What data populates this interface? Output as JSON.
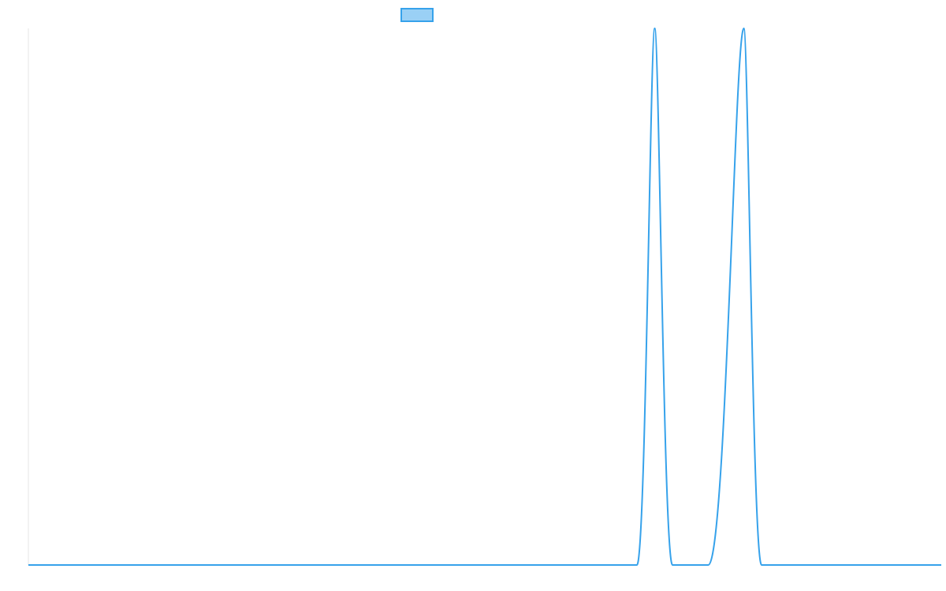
{
  "chart_data": {
    "type": "line",
    "title": "",
    "xlabel": "",
    "ylabel": "",
    "grid": false,
    "legend_placement": "top-center",
    "series": [
      {
        "label": "",
        "color": "#36A2EB",
        "fill_color": "#9AD0F5",
        "x": [
          0,
          0.6666,
          0.6861,
          0.7056,
          0.7447,
          0.7837,
          0.8032,
          1.0
        ],
        "y": [
          0,
          0,
          1,
          0,
          0,
          1,
          0,
          0
        ]
      }
    ],
    "xlim": [
      0,
      1
    ],
    "ylim": [
      0,
      1
    ]
  }
}
